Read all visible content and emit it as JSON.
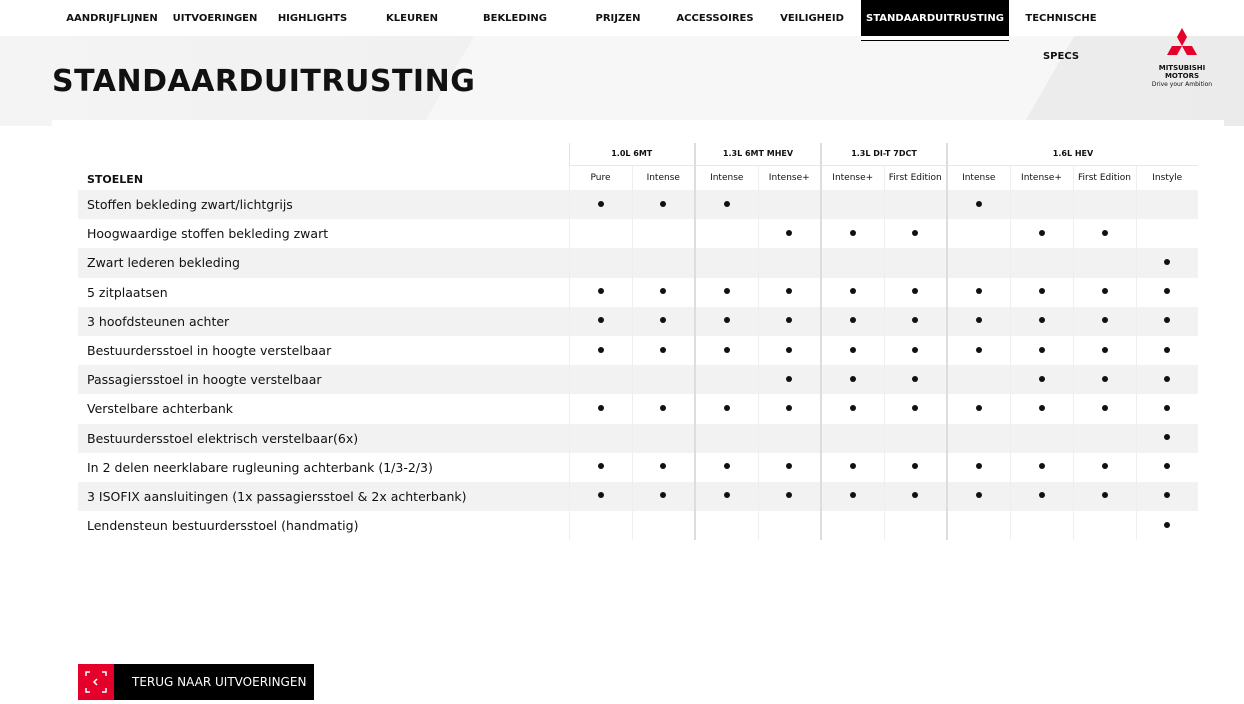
{
  "nav": {
    "items": [
      "AANDRIJFLIJNEN",
      "UITVOERINGEN",
      "HIGHLIGHTS",
      "KLEUREN",
      "BEKLEDING",
      "PRIJZEN",
      "ACCESSOIRES",
      "VEILIGHEID",
      "STANDAARDUITRUSTING",
      "TECHNISCHE SPECS"
    ],
    "active": "STANDAARDUITRUSTING"
  },
  "page_title": "STANDAARDUITRUSTING",
  "logo": {
    "line1": "MITSUBISHI",
    "line2": "MOTORS",
    "tagline": "Drive your Ambition",
    "color": "#e4002b"
  },
  "table": {
    "section": "STOELEN",
    "groups": [
      {
        "label": "1.0L 6MT",
        "span": 2
      },
      {
        "label": "1.3L 6MT MHEV",
        "span": 2
      },
      {
        "label": "1.3L DI-T 7DCT",
        "span": 2
      },
      {
        "label": "1.6L HEV",
        "span": 4
      }
    ],
    "variants": [
      "Pure",
      "Intense",
      "Intense",
      "Intense+",
      "Intense+",
      "First Edition",
      "Intense",
      "Intense+",
      "First Edition",
      "Instyle"
    ],
    "rows": [
      {
        "label": "Stoffen bekleding zwart/lichtgrijs",
        "values": [
          1,
          1,
          1,
          0,
          0,
          0,
          1,
          0,
          0,
          0
        ]
      },
      {
        "label": "Hoogwaardige stoffen bekleding zwart",
        "values": [
          0,
          0,
          0,
          1,
          1,
          1,
          0,
          1,
          1,
          0
        ]
      },
      {
        "label": "Zwart lederen bekleding",
        "values": [
          0,
          0,
          0,
          0,
          0,
          0,
          0,
          0,
          0,
          1
        ]
      },
      {
        "label": "5 zitplaatsen",
        "values": [
          1,
          1,
          1,
          1,
          1,
          1,
          1,
          1,
          1,
          1
        ]
      },
      {
        "label": "3 hoofdsteunen achter",
        "values": [
          1,
          1,
          1,
          1,
          1,
          1,
          1,
          1,
          1,
          1
        ]
      },
      {
        "label": "Bestuurdersstoel in hoogte verstelbaar",
        "values": [
          1,
          1,
          1,
          1,
          1,
          1,
          1,
          1,
          1,
          1
        ]
      },
      {
        "label": "Passagiersstoel in hoogte verstelbaar",
        "values": [
          0,
          0,
          0,
          1,
          1,
          1,
          0,
          1,
          1,
          1
        ]
      },
      {
        "label": "Verstelbare achterbank",
        "values": [
          1,
          1,
          1,
          1,
          1,
          1,
          1,
          1,
          1,
          1
        ]
      },
      {
        "label": "Bestuurdersstoel elektrisch verstelbaar(6x)",
        "values": [
          0,
          0,
          0,
          0,
          0,
          0,
          0,
          0,
          0,
          1
        ]
      },
      {
        "label": "In 2 delen neerklabare rugleuning achterbank (1/3-2/3)",
        "values": [
          1,
          1,
          1,
          1,
          1,
          1,
          1,
          1,
          1,
          1
        ]
      },
      {
        "label": "3 ISOFIX  aansluitingen (1x passagiersstoel & 2x achterbank)",
        "values": [
          1,
          1,
          1,
          1,
          1,
          1,
          1,
          1,
          1,
          1
        ]
      },
      {
        "label": "Lendensteun bestuurdersstoel (handmatig)",
        "values": [
          0,
          0,
          0,
          0,
          0,
          0,
          0,
          0,
          0,
          1
        ]
      }
    ]
  },
  "back_button": {
    "label": "TERUG NAAR UITVOERINGEN",
    "icon": "chevron-left-icon"
  }
}
